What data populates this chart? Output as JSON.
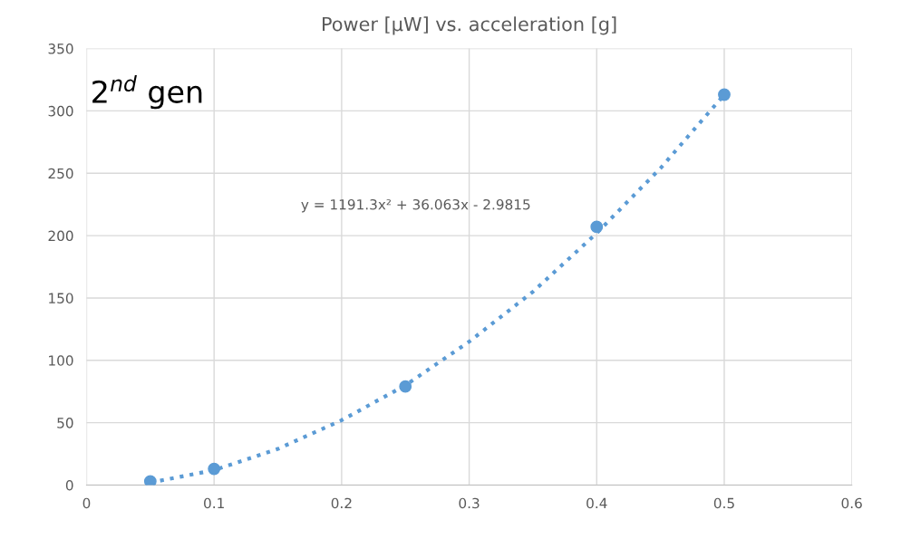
{
  "chart_data": {
    "type": "scatter",
    "title": "Power [µW] vs. acceleration [g]",
    "x": [
      0.05,
      0.1,
      0.25,
      0.4,
      0.5
    ],
    "series": [
      {
        "color": "#5b9bd5",
        "marker": "circle",
        "values": [
          3,
          13,
          79,
          207,
          313
        ]
      },
      {
        "type": "line",
        "color": "#5b9bd5",
        "line_style": "dotted",
        "x": [
          0.05,
          0.1,
          0.15,
          0.2,
          0.25,
          0.3,
          0.35,
          0.4,
          0.45,
          0.5
        ],
        "values": [
          2,
          12,
          29,
          52,
          80,
          115,
          155,
          202,
          254,
          313
        ]
      }
    ],
    "annotations": [
      "2$^{nd}$ gen",
      "y = 1191.3x² + 36.063x - 2.9815"
    ],
    "xlim": [
      0,
      0.6
    ],
    "xticks": [
      0,
      0.1,
      0.2,
      0.3,
      0.4,
      0.5,
      0.6
    ],
    "ylim": [
      0,
      350
    ],
    "yticks": [
      0,
      50,
      100,
      150,
      200,
      250,
      300,
      350
    ],
    "grid": true
  }
}
